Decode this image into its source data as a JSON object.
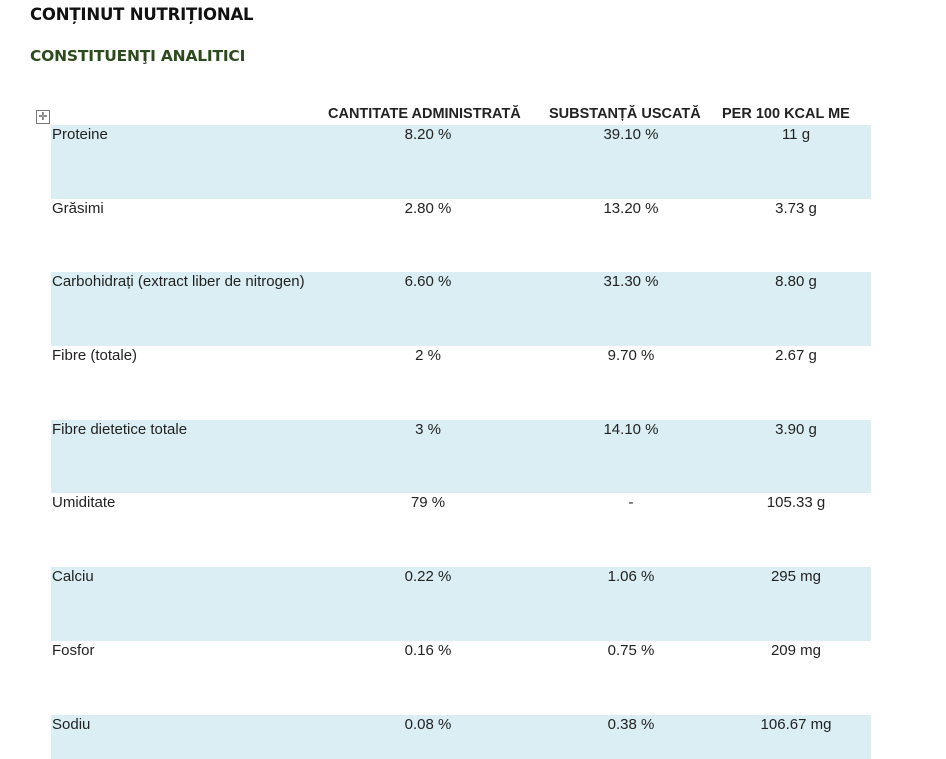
{
  "document": {
    "title": "CONȚINUT NUTRIȚIONAL",
    "section": "CONSTITUENŢI ANALITICI"
  },
  "table": {
    "move_handle_icon": "move-cross-icon",
    "row_shade_color": "#daeef3",
    "headers": [
      "CANTITATE ADMINISTRATĂ",
      "SUBSTANȚĂ USCATĂ",
      "PER 100 KCAL ME"
    ],
    "rows": [
      {
        "name": "Proteine",
        "v1": "8.20 %",
        "v2": "39.10 %",
        "v3": "11 g"
      },
      {
        "name": "Grăsimi",
        "v1": "2.80 %",
        "v2": "13.20 %",
        "v3": "3.73 g"
      },
      {
        "name": "Carbohidrați (extract liber de nitrogen)",
        "v1": "6.60 %",
        "v2": "31.30 %",
        "v3": "8.80 g"
      },
      {
        "name": "Fibre (totale)",
        "v1": "2 %",
        "v2": "9.70 %",
        "v3": "2.67 g"
      },
      {
        "name": "Fibre dietetice totale",
        "v1": "3 %",
        "v2": "14.10 %",
        "v3": "3.90 g"
      },
      {
        "name": "Umiditate",
        "v1": "79 %",
        "v2": "-",
        "v3": "105.33 g"
      },
      {
        "name": "Calciu",
        "v1": "0.22 %",
        "v2": "1.06 %",
        "v3": "295 mg"
      },
      {
        "name": "Fosfor",
        "v1": "0.16 %",
        "v2": "0.75 %",
        "v3": "209 mg"
      },
      {
        "name": "Sodiu",
        "v1": "0.08 %",
        "v2": "0.38 %",
        "v3": "106.67 mg"
      }
    ]
  }
}
